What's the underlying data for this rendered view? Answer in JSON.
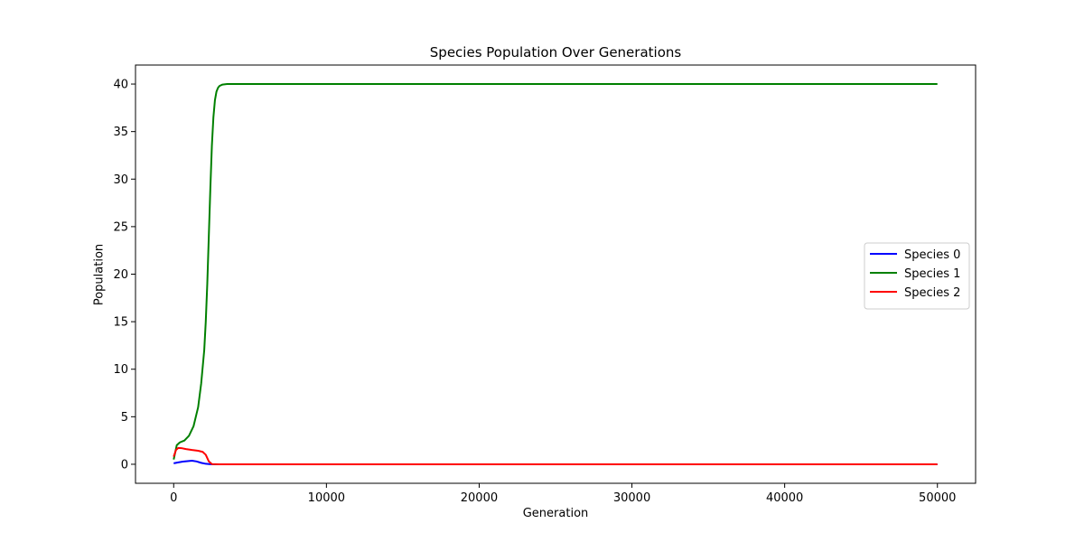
{
  "chart_data": {
    "type": "line",
    "title": "Species Population Over Generations",
    "xlabel": "Generation",
    "ylabel": "Population",
    "xlim": [
      -2500,
      52500
    ],
    "ylim": [
      -2,
      42
    ],
    "xticks": [
      0,
      10000,
      20000,
      30000,
      40000,
      50000
    ],
    "yticks": [
      0,
      5,
      10,
      15,
      20,
      25,
      30,
      35,
      40
    ],
    "grid": false,
    "legend_position": "center-right",
    "series": [
      {
        "name": "Species 0",
        "color": "#0000ff",
        "x": [
          0,
          300,
          600,
          900,
          1200,
          1500,
          1800,
          2100,
          2400,
          2700,
          3000,
          10000,
          20000,
          30000,
          40000,
          50000
        ],
        "y": [
          0.1,
          0.2,
          0.28,
          0.33,
          0.38,
          0.3,
          0.15,
          0.05,
          0.01,
          0,
          0,
          0,
          0,
          0,
          0,
          0
        ]
      },
      {
        "name": "Species 1",
        "color": "#008000",
        "x": [
          0,
          200,
          400,
          700,
          1000,
          1300,
          1600,
          1800,
          2000,
          2100,
          2200,
          2300,
          2400,
          2500,
          2600,
          2700,
          2800,
          2900,
          3000,
          3200,
          3500,
          4000,
          10000,
          20000,
          30000,
          40000,
          50000
        ],
        "y": [
          0.5,
          2.0,
          2.3,
          2.5,
          3.0,
          4.0,
          6.0,
          8.5,
          12.0,
          15.0,
          19.0,
          24.0,
          29.0,
          33.5,
          36.5,
          38.3,
          39.2,
          39.6,
          39.8,
          39.95,
          40,
          40,
          40,
          40,
          40,
          40,
          40
        ]
      },
      {
        "name": "Species 2",
        "color": "#ff0000",
        "x": [
          0,
          150,
          300,
          500,
          800,
          1200,
          1600,
          1900,
          2100,
          2300,
          2500,
          3000,
          10000,
          20000,
          30000,
          40000,
          50000
        ],
        "y": [
          0.8,
          1.5,
          1.72,
          1.7,
          1.6,
          1.5,
          1.42,
          1.3,
          1.0,
          0.3,
          0.02,
          0,
          0,
          0,
          0,
          0,
          0
        ]
      }
    ]
  }
}
